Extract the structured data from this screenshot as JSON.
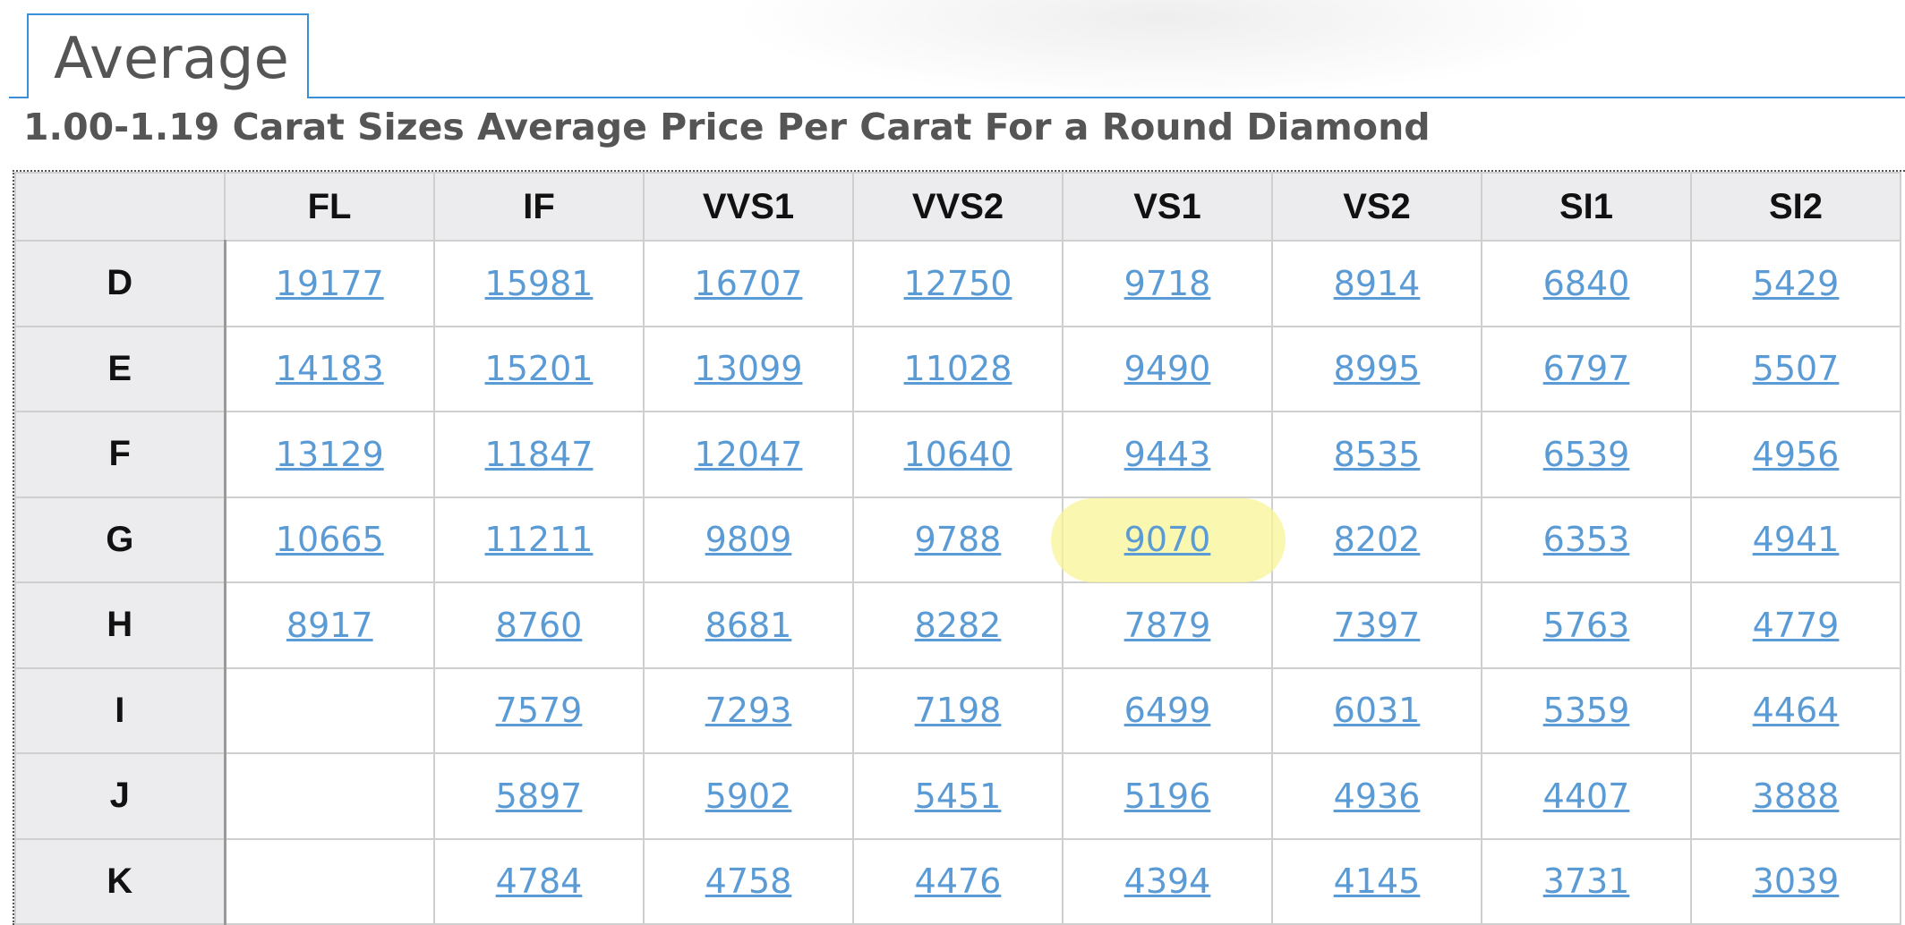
{
  "tab": {
    "label": "Average"
  },
  "subtitle": "1.00-1.19 Carat Sizes Average Price Per Carat For a Round Diamond",
  "colors": {
    "accent": "#3a8fd6",
    "link": "#5b9bd5",
    "header_bg": "#ececef",
    "highlight": "#f8f596"
  },
  "table": {
    "columns": [
      "FL",
      "IF",
      "VVS1",
      "VVS2",
      "VS1",
      "VS2",
      "SI1",
      "SI2"
    ],
    "rows": [
      {
        "label": "D",
        "values": [
          "19177",
          "15981",
          "16707",
          "12750",
          "9718",
          "8914",
          "6840",
          "5429"
        ]
      },
      {
        "label": "E",
        "values": [
          "14183",
          "15201",
          "13099",
          "11028",
          "9490",
          "8995",
          "6797",
          "5507"
        ]
      },
      {
        "label": "F",
        "values": [
          "13129",
          "11847",
          "12047",
          "10640",
          "9443",
          "8535",
          "6539",
          "4956"
        ]
      },
      {
        "label": "G",
        "values": [
          "10665",
          "11211",
          "9809",
          "9788",
          "9070",
          "8202",
          "6353",
          "4941"
        ]
      },
      {
        "label": "H",
        "values": [
          "8917",
          "8760",
          "8681",
          "8282",
          "7879",
          "7397",
          "5763",
          "4779"
        ]
      },
      {
        "label": "I",
        "values": [
          "",
          "7579",
          "7293",
          "7198",
          "6499",
          "6031",
          "5359",
          "4464"
        ]
      },
      {
        "label": "J",
        "values": [
          "",
          "5897",
          "5902",
          "5451",
          "5196",
          "4936",
          "4407",
          "3888"
        ]
      },
      {
        "label": "K",
        "values": [
          "",
          "4784",
          "4758",
          "4476",
          "4394",
          "4145",
          "3731",
          "3039"
        ]
      }
    ],
    "highlighted": {
      "row": "G",
      "column": "VS1",
      "value": "9070"
    }
  }
}
